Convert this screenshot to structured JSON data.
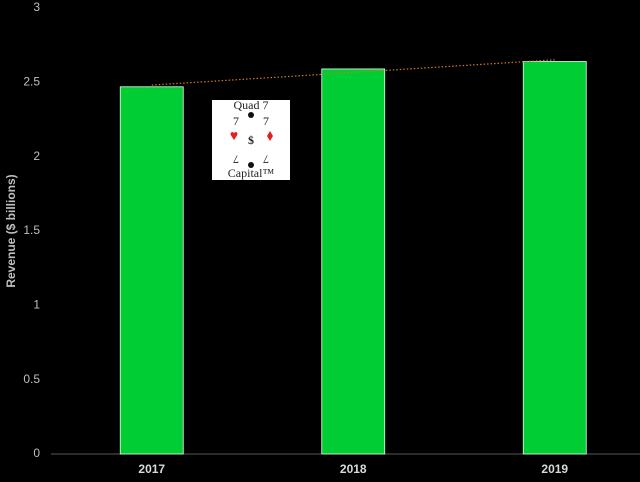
{
  "chart_data": {
    "type": "bar",
    "y_label": "Revenue ($ billions)",
    "categories": [
      "2017",
      "2018",
      "2019"
    ],
    "values": [
      2.47,
      2.59,
      2.64
    ],
    "color": "#00cc33",
    "ylim": [
      0,
      3
    ],
    "yticks": [
      0,
      0.5,
      1,
      1.5,
      2,
      2.5,
      3
    ],
    "grid": false,
    "trendline": true,
    "trendline_color": "#c97b2a",
    "logo": {
      "top": "Quad 7",
      "bottom": "Capital™",
      "mark": "$",
      "digit": "7"
    }
  }
}
